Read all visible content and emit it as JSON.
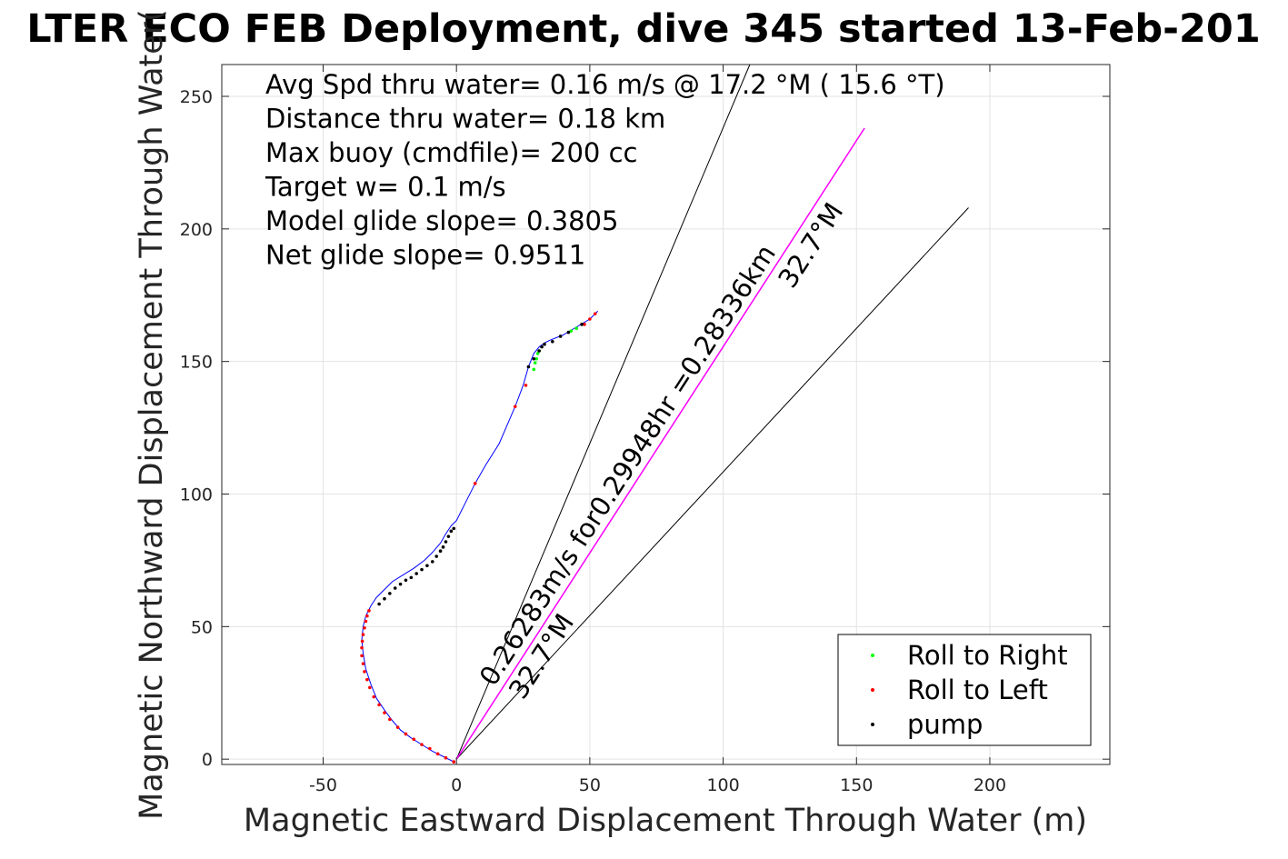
{
  "chart_data": {
    "type": "scatter",
    "title": "LTER ECO FEB Deployment, dive 345 started 13-Feb-201",
    "xlabel": "Magnetic Eastward Displacement Through Water (m)",
    "ylabel": "Magnetic Northward Displacement Through Water(",
    "xlim": [
      -88,
      245
    ],
    "ylim": [
      -2,
      262
    ],
    "xticks": [
      -50,
      0,
      50,
      100,
      150,
      200
    ],
    "yticks": [
      0,
      50,
      100,
      150,
      200,
      250
    ],
    "grid": true,
    "legend_position": "bottom-right",
    "colors": {
      "track": "#0000ff",
      "roll_right": "#00ff00",
      "roll_left": "#ff0000",
      "pump": "#000000",
      "current": "#ff00ff",
      "fan": "#000000"
    },
    "stats_text": [
      "Avg Spd thru water=  0.16 m/s @  17.2 °M ( 15.6 °T)",
      "Distance thru water=  0.18 km",
      "Max buoy (cmdfile)= 200 cc",
      "Target w= 0.1 m/s",
      "Model glide slope= 0.3805",
      "Net glide slope= 0.9511"
    ],
    "annotations": [
      {
        "text": "0.26283m/s for0.29948hr =0.28336km",
        "x": 14,
        "y": 27,
        "rotation_deg": -57
      },
      {
        "text": "32.7°M",
        "x": 25,
        "y": 22,
        "rotation_deg": -57
      },
      {
        "text": "32.7°M",
        "x": 126,
        "y": 177,
        "rotation_deg": -57
      }
    ],
    "fan_lines": [
      {
        "x": [
          0,
          110
        ],
        "y": [
          0,
          262
        ]
      },
      {
        "x": [
          0,
          153
        ],
        "y": [
          0,
          238
        ]
      },
      {
        "x": [
          0,
          192
        ],
        "y": [
          0,
          208
        ]
      }
    ],
    "current_line": {
      "x": [
        0,
        153
      ],
      "y": [
        0,
        238
      ]
    },
    "track": {
      "x": [
        -1,
        -5,
        -9,
        -13,
        -17,
        -21,
        -24,
        -27,
        -30,
        -32,
        -34,
        -35,
        -35.5,
        -35,
        -34,
        -32,
        -30,
        -27,
        -24,
        -20,
        -16,
        -12,
        -9,
        -6,
        -4,
        -2,
        0,
        3,
        7,
        11,
        16,
        19,
        22,
        25,
        27,
        29,
        31,
        33,
        35,
        40,
        45,
        50,
        53
      ],
      "y": [
        -1,
        1,
        3,
        5.5,
        8,
        11,
        14.5,
        18.5,
        23,
        28,
        34,
        40,
        45,
        50,
        54,
        58,
        61,
        64,
        67,
        69.5,
        72,
        75,
        78,
        81.5,
        85,
        88,
        90,
        96,
        104,
        111,
        119,
        126,
        133,
        141,
        148,
        153,
        155.5,
        157,
        158,
        160,
        163,
        166,
        169
      ]
    },
    "series": [
      {
        "name": "Roll to Right",
        "x": [
          29,
          29.5,
          30,
          30.5,
          31,
          43,
          45
        ],
        "y": [
          147,
          149.5,
          151,
          153,
          154,
          161.5,
          162.5
        ]
      },
      {
        "name": "Roll to Left",
        "x": [
          -1,
          -4,
          -7,
          -10,
          -13,
          -16,
          -19,
          -22,
          -25,
          -27,
          -29,
          -31,
          -32.5,
          -33.5,
          -34.5,
          -35,
          -35.5,
          -35.5,
          -35.3,
          -35,
          -34.5,
          -34,
          -33.5,
          -32.8,
          7,
          22,
          26,
          48,
          50,
          52
        ],
        "y": [
          -1,
          0.5,
          2,
          4,
          5.5,
          7.5,
          9.5,
          12,
          15,
          17.5,
          20.5,
          23.5,
          27,
          30,
          33,
          36,
          39,
          42,
          44.5,
          47,
          49.5,
          52,
          54,
          56,
          104,
          133,
          141,
          164,
          166,
          168
        ]
      },
      {
        "name": "pump",
        "x": [
          -29,
          -27,
          -25,
          -23,
          -21,
          -19,
          -17,
          -15,
          -13,
          -11,
          -9,
          -7.5,
          -6,
          -5,
          -4,
          -3,
          -2,
          -1,
          27,
          29,
          31,
          32,
          33,
          36,
          39,
          42,
          47
        ],
        "y": [
          58.5,
          60.5,
          62.5,
          64.5,
          66,
          67.5,
          68.5,
          70,
          71.5,
          73,
          74.5,
          76.5,
          78.5,
          80,
          82,
          84,
          86,
          87,
          148,
          151,
          154,
          155.5,
          156.5,
          157.5,
          159.5,
          161,
          164
        ]
      }
    ]
  },
  "legend": {
    "items": [
      {
        "label": "Roll to Right",
        "color": "#00ff00"
      },
      {
        "label": "Roll to Left",
        "color": "#ff0000"
      },
      {
        "label": "pump",
        "color": "#000000"
      }
    ]
  }
}
